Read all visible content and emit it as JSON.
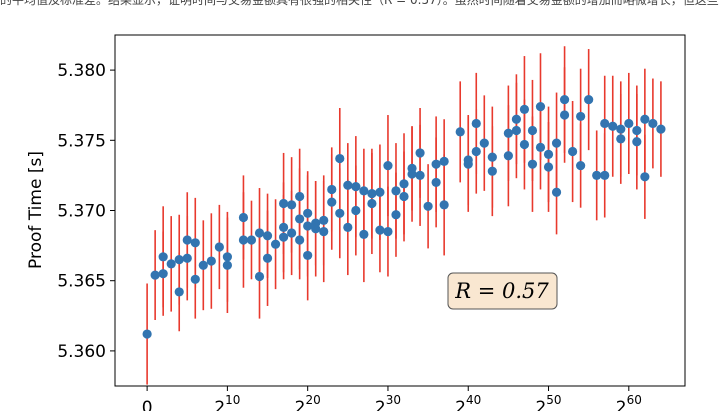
{
  "caption": "的平均值及标准差。结果显示，证明时间与交易金额具有很强的相关性（R = 0.57）。虽然时间随着交易金额的增加而略微增长，但这些",
  "chart_data": {
    "type": "scatter",
    "title": "",
    "xlabel": "",
    "ylabel": "Proof Time [s]",
    "x_scale": "log2",
    "xlim": [
      -4,
      67
    ],
    "ylim": [
      5.3575,
      5.3825
    ],
    "x_ticks": [
      {
        "value": 0,
        "base": "0",
        "exp": ""
      },
      {
        "value": 10,
        "base": "2",
        "exp": "10"
      },
      {
        "value": 20,
        "base": "2",
        "exp": "20"
      },
      {
        "value": 30,
        "base": "2",
        "exp": "30"
      },
      {
        "value": 40,
        "base": "2",
        "exp": "40"
      },
      {
        "value": 50,
        "base": "2",
        "exp": "50"
      },
      {
        "value": 60,
        "base": "2",
        "exp": "60"
      }
    ],
    "y_ticks": [
      "5.360",
      "5.365",
      "5.370",
      "5.375",
      "5.380"
    ],
    "annotation": "R = 0.57",
    "colors": {
      "point": "#3274b0",
      "errorbar": "#e8392d",
      "annotation_bg": "#f9e7d1"
    },
    "x": [
      0,
      1,
      2,
      2,
      3,
      4,
      4,
      5,
      5,
      6,
      6,
      7,
      8,
      9,
      10,
      10,
      12,
      12,
      13,
      14,
      14,
      15,
      15,
      16,
      17,
      17,
      17,
      18,
      18,
      19,
      19,
      19,
      20,
      20,
      20,
      21,
      21,
      22,
      22,
      23,
      23,
      24,
      24,
      25,
      25,
      26,
      26,
      27,
      27,
      28,
      28,
      29,
      29,
      30,
      30,
      31,
      31,
      32,
      32,
      33,
      33,
      34,
      34,
      35,
      36,
      36,
      37,
      37,
      39,
      40,
      40,
      41,
      41,
      42,
      43,
      43,
      45,
      45,
      46,
      46,
      47,
      47,
      48,
      48,
      49,
      49,
      50,
      50,
      51,
      51,
      52,
      52,
      53,
      54,
      54,
      55,
      56,
      57,
      57,
      58,
      59,
      59,
      60,
      61,
      61,
      62,
      62,
      63,
      64
    ],
    "y": [
      5.3612,
      5.3654,
      5.3667,
      5.3655,
      5.3662,
      5.3642,
      5.3665,
      5.3679,
      5.3666,
      5.3677,
      5.3651,
      5.3661,
      5.3664,
      5.3674,
      5.3661,
      5.3667,
      5.3695,
      5.3679,
      5.3679,
      5.3684,
      5.3653,
      5.3666,
      5.3682,
      5.3676,
      5.3705,
      5.3688,
      5.3681,
      5.3704,
      5.3684,
      5.3694,
      5.3679,
      5.371,
      5.3689,
      5.3698,
      5.3668,
      5.3687,
      5.3691,
      5.3693,
      5.3685,
      5.3715,
      5.3706,
      5.3698,
      5.3737,
      5.3718,
      5.3688,
      5.3717,
      5.37,
      5.3714,
      5.3683,
      5.3705,
      5.3712,
      5.3686,
      5.3713,
      5.3685,
      5.3732,
      5.3697,
      5.3714,
      5.371,
      5.3719,
      5.373,
      5.3726,
      5.3741,
      5.3725,
      5.3703,
      5.3733,
      5.372,
      5.3704,
      5.3735,
      5.3756,
      5.3733,
      5.3736,
      5.3762,
      5.3742,
      5.3748,
      5.3738,
      5.3728,
      5.3755,
      5.3739,
      5.3765,
      5.3757,
      5.3772,
      5.3747,
      5.3733,
      5.3757,
      5.3745,
      5.3774,
      5.374,
      5.3731,
      5.3748,
      5.3713,
      5.3779,
      5.3768,
      5.3742,
      5.3732,
      5.3767,
      5.3779,
      5.3725,
      5.3762,
      5.3725,
      5.376,
      5.3751,
      5.3758,
      5.3762,
      5.3757,
      5.3749,
      5.3724,
      5.3765,
      5.3762,
      5.3758
    ],
    "yerr": [
      0.0036,
      0.0032,
      0.0036,
      0.003,
      0.0034,
      0.0028,
      0.0032,
      0.0034,
      0.003,
      0.0032,
      0.0028,
      0.0032,
      0.0034,
      0.003,
      0.0034,
      0.0032,
      0.003,
      0.0034,
      0.0028,
      0.0032,
      0.003,
      0.0034,
      0.003,
      0.0032,
      0.0036,
      0.0032,
      0.003,
      0.0034,
      0.003,
      0.0036,
      0.0028,
      0.0034,
      0.0036,
      0.003,
      0.0032,
      0.0034,
      0.003,
      0.0032,
      0.0036,
      0.003,
      0.0034,
      0.0032,
      0.0036,
      0.003,
      0.0034,
      0.0036,
      0.0032,
      0.003,
      0.0034,
      0.0036,
      0.0032,
      0.003,
      0.0034,
      0.0032,
      0.0036,
      0.003,
      0.0034,
      0.0032,
      0.0036,
      0.003,
      0.0034,
      0.0032,
      0.0036,
      0.003,
      0.0034,
      0.0032,
      0.0036,
      0.003,
      0.0036,
      0.0034,
      0.0032,
      0.0036,
      0.003,
      0.0034,
      0.0036,
      0.0032,
      0.0034,
      0.0036,
      0.0032,
      0.0034,
      0.0038,
      0.0032,
      0.0034,
      0.0036,
      0.003,
      0.0038,
      0.0034,
      0.0032,
      0.0036,
      0.003,
      0.0038,
      0.0034,
      0.0036,
      0.003,
      0.0034,
      0.0036,
      0.0032,
      0.0034,
      0.003,
      0.0036,
      0.0032,
      0.0034,
      0.0036,
      0.0032,
      0.0034,
      0.003,
      0.0036,
      0.0032,
      0.0034
    ]
  }
}
